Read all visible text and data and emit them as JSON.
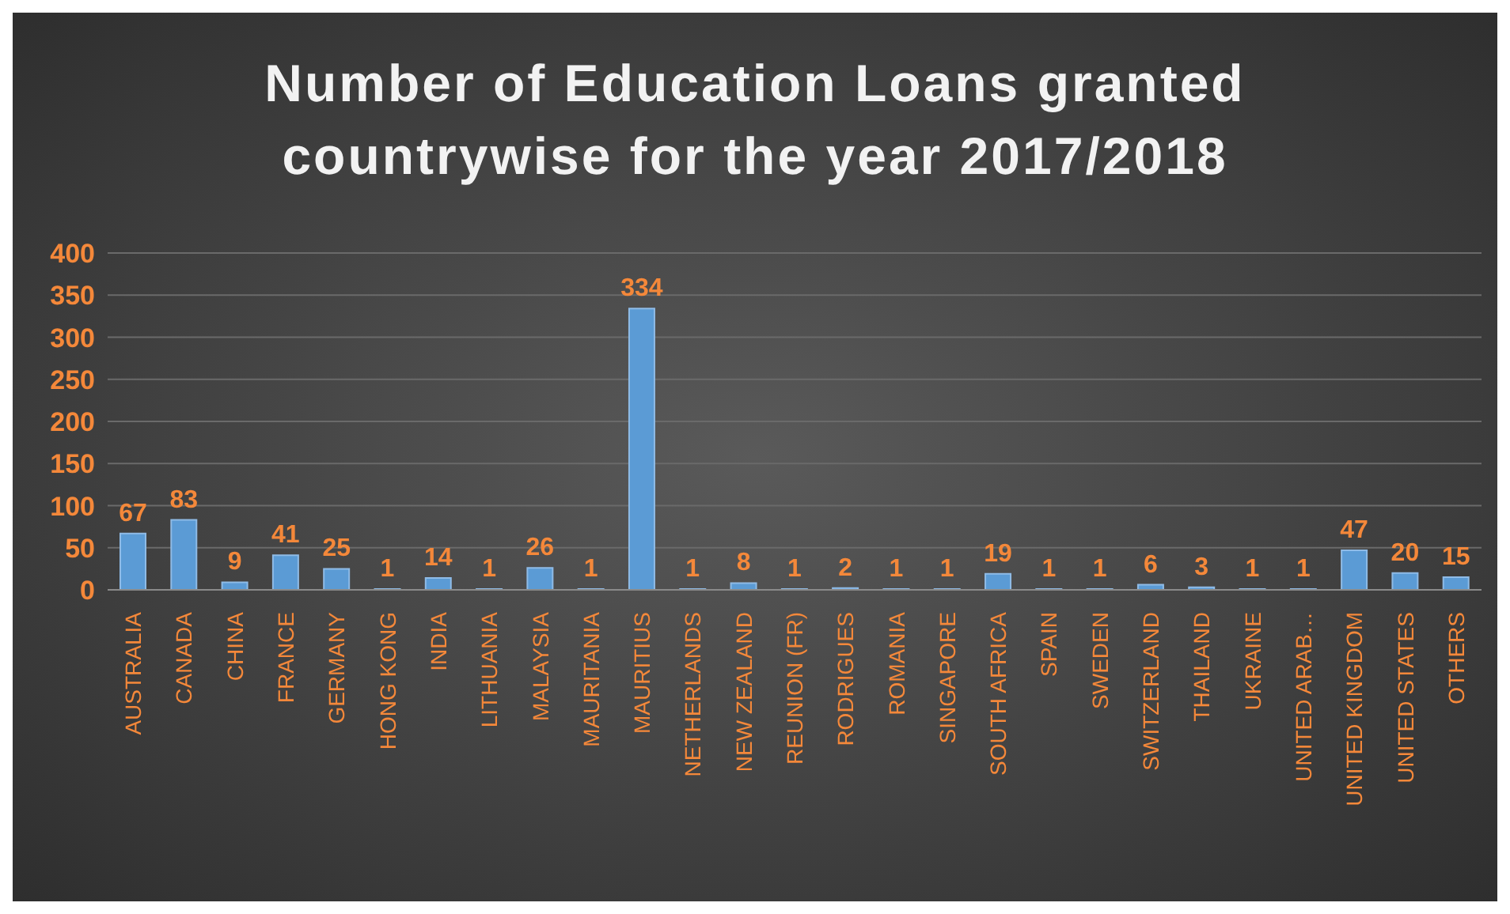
{
  "chart_data": {
    "type": "bar",
    "title": "Number of Education Loans granted countrywise for the year 2017/2018",
    "categories": [
      "AUSTRALIA",
      "CANADA",
      "CHINA",
      "FRANCE",
      "GERMANY",
      "HONG KONG",
      "INDIA",
      "LITHUANIA",
      "MALAYSIA",
      "MAURITANIA",
      "MAURITIUS",
      "NETHERLANDS",
      "NEW ZEALAND",
      "REUNION (FR)",
      "RODRIGUES",
      "ROMANIA",
      "SINGAPORE",
      "SOUTH AFRICA",
      "SPAIN",
      "SWEDEN",
      "SWITZERLAND",
      "THAILAND",
      "UKRAINE",
      "UNITED ARAB…",
      "UNITED KINGDOM",
      "UNITED STATES",
      "OTHERS"
    ],
    "values": [
      67,
      83,
      9,
      41,
      25,
      1,
      14,
      1,
      26,
      1,
      334,
      1,
      8,
      1,
      2,
      1,
      1,
      19,
      1,
      1,
      6,
      3,
      1,
      1,
      47,
      20,
      15
    ],
    "color": "#5b9bd5",
    "ylim": [
      0,
      400
    ],
    "yticks": [
      0,
      50,
      100,
      150,
      200,
      250,
      300,
      350,
      400
    ],
    "grid": "y",
    "data_labels": true
  }
}
